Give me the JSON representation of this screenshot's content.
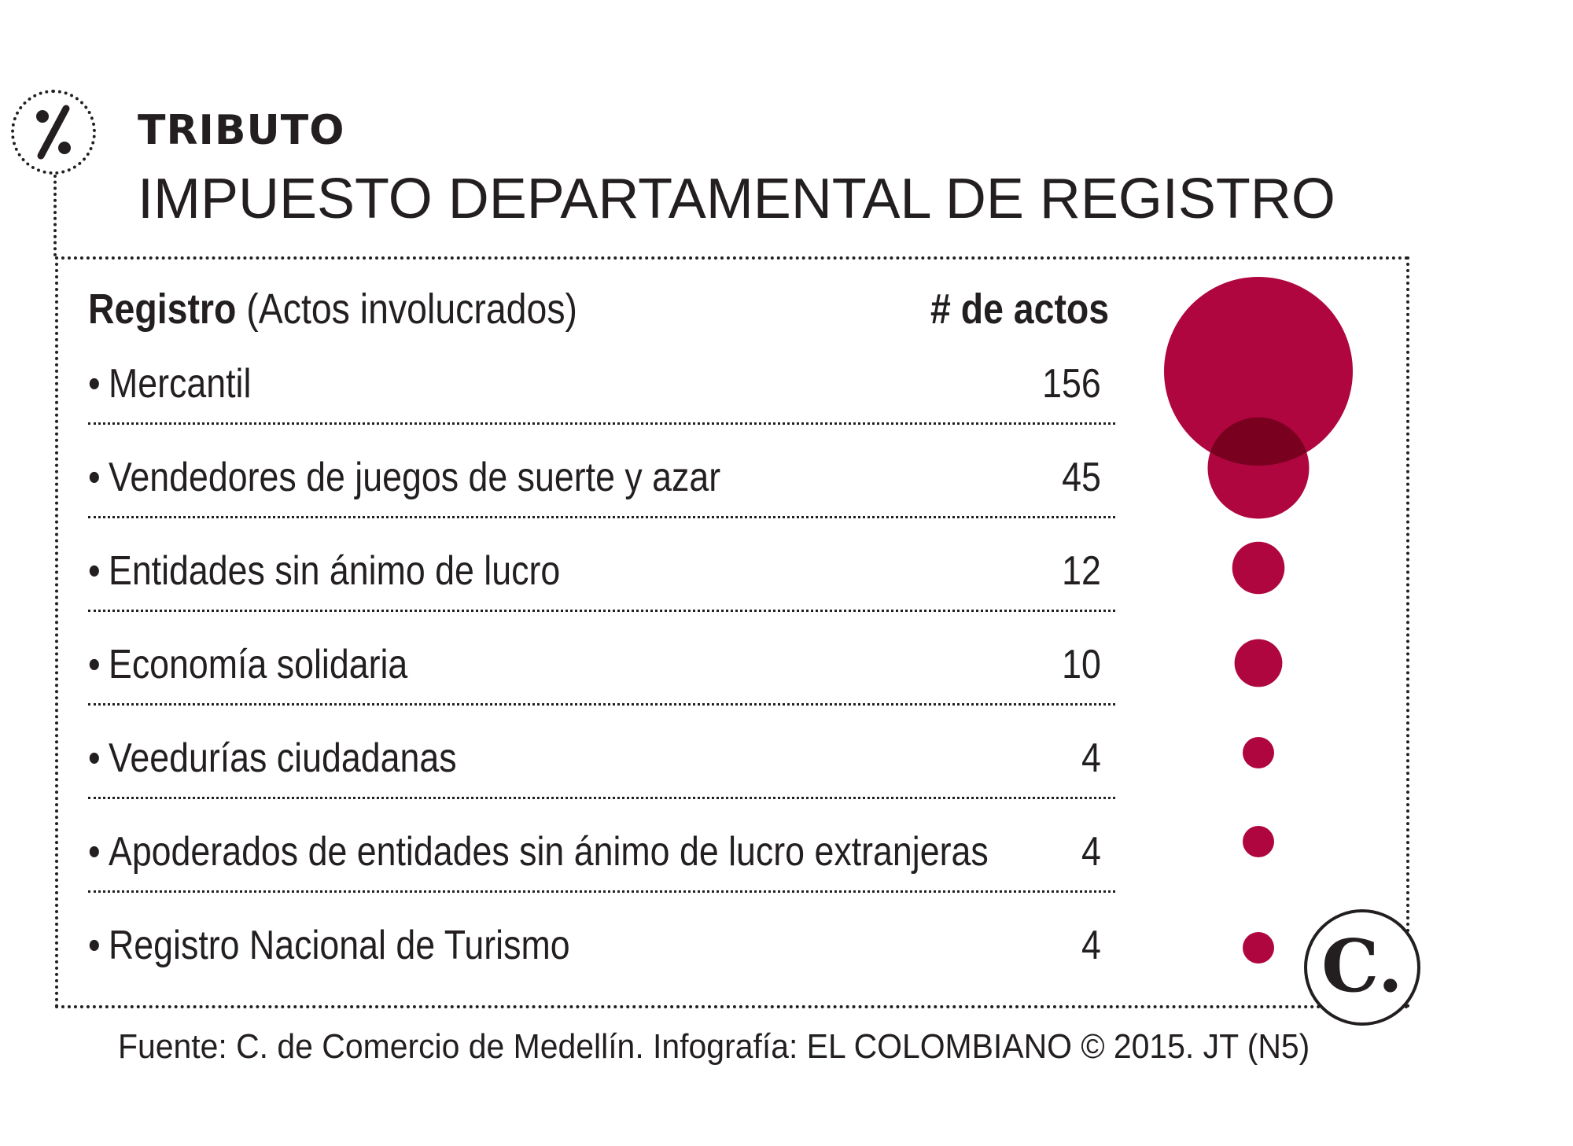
{
  "header": {
    "icon": "percent-icon",
    "kicker": "TRIBUTO",
    "title": "IMPUESTO DEPARTAMENTAL DE REGISTRO"
  },
  "table": {
    "col_label_bold": "Registro",
    "col_label_rest": "(Actos involucrados)",
    "col_count": "#  de actos",
    "bullet": "•"
  },
  "chart_data": {
    "type": "table",
    "title": "IMPUESTO DEPARTAMENTAL DE REGISTRO",
    "columns": [
      "Registro (Actos involucrados)",
      "# de actos"
    ],
    "categories": [
      "Mercantil",
      "Vendedores de juegos de suerte y azar",
      "Entidades sin ánimo de lucro",
      "Economía solidaria",
      "Veedurías ciudadanas",
      "Apoderados de entidades sin ánimo de lucro extranjeras",
      "Registro Nacional de Turismo"
    ],
    "values": [
      156,
      45,
      12,
      10,
      4,
      4,
      4
    ],
    "values_text": [
      "156",
      "45",
      "12",
      "10",
      "4",
      "4",
      "4"
    ],
    "bubble_color": "#b0063f",
    "overlap_color": "#7a0020"
  },
  "footer": {
    "source": "Fuente: C. de Comercio de Medellín. Infografía: EL COLOMBIANO © 2015. JT (N5)",
    "logo_text": "C."
  }
}
